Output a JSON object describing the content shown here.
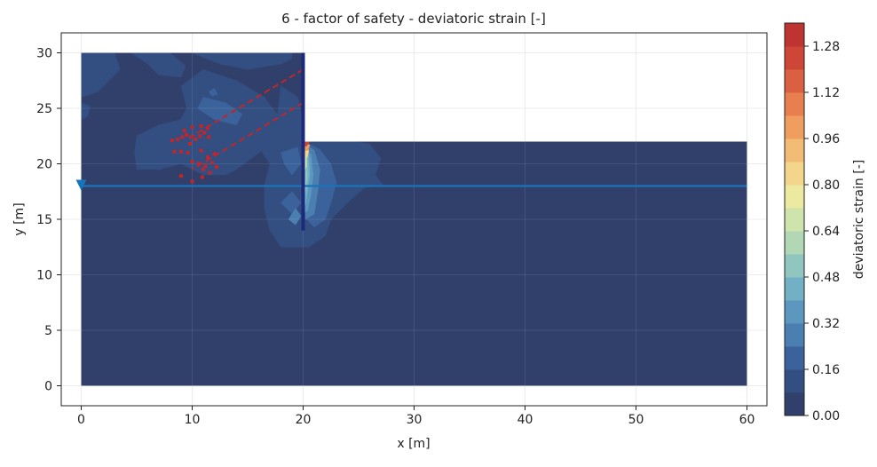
{
  "chart_data": {
    "type": "contour",
    "title": "6 - factor of safety - deviatoric strain [-]",
    "xlabel": "x [m]",
    "ylabel": "y [m]",
    "xlim": [
      -1.8,
      61.8
    ],
    "ylim": [
      -1.8,
      31.8
    ],
    "x_ticks": [
      0,
      10,
      20,
      30,
      40,
      50,
      60
    ],
    "y_ticks": [
      0,
      5,
      10,
      15,
      20,
      25,
      30
    ],
    "grid": true,
    "colorbar": {
      "label": "deviatoric strain [-]",
      "min": 0.0,
      "max": 1.36,
      "tick_labels": [
        "0.00",
        "0.16",
        "0.32",
        "0.48",
        "0.64",
        "0.80",
        "0.96",
        "1.12",
        "1.28"
      ],
      "levels": 17,
      "colors": [
        "#313f6b",
        "#334e81",
        "#3b629a",
        "#4c7fb1",
        "#5c97bf",
        "#72b0c6",
        "#91c6c0",
        "#b1d7b4",
        "#cfe3ad",
        "#ece9a0",
        "#f4d58c",
        "#f3bc76",
        "#ef9e5f",
        "#e87f4e",
        "#db6041",
        "#cd4638",
        "#bd3430"
      ]
    },
    "domain": {
      "outline": [
        [
          0,
          0
        ],
        [
          60,
          0
        ],
        [
          60,
          22
        ],
        [
          20,
          22
        ],
        [
          20,
          30
        ],
        [
          0,
          30
        ]
      ],
      "background_level": 0
    },
    "wall": {
      "x": 20,
      "y_top": 30,
      "y_bottom": 14,
      "color": "#1b2a7a"
    },
    "water_table": {
      "y": 18,
      "x_start": 0,
      "x_end": 60,
      "color": "#1874b8"
    },
    "anchors": [
      {
        "x1": 20,
        "y1": 28.5,
        "x2": 10,
        "y2": 22.5
      },
      {
        "x1": 20,
        "y1": 25.5,
        "x2": 10,
        "y2": 19.5
      }
    ],
    "gauss_points": [
      [
        8.2,
        22.1
      ],
      [
        8.7,
        22.2
      ],
      [
        9.1,
        22.4
      ],
      [
        9.5,
        22.6
      ],
      [
        9.9,
        22.4
      ],
      [
        10.3,
        22.2
      ],
      [
        10.7,
        22.5
      ],
      [
        11.1,
        22.8
      ],
      [
        11.5,
        22.4
      ],
      [
        9.3,
        23
      ],
      [
        10.0,
        23.3
      ],
      [
        10.8,
        23.4
      ],
      [
        11.4,
        23.2
      ],
      [
        8.4,
        21.1
      ],
      [
        9.0,
        21.1
      ],
      [
        9.6,
        21.0
      ],
      [
        10.8,
        21.2
      ],
      [
        11.4,
        20.6
      ],
      [
        10.0,
        20.2
      ],
      [
        10.6,
        20.0
      ],
      [
        11.2,
        19.8
      ],
      [
        11.8,
        20.1
      ],
      [
        12.2,
        19.7
      ],
      [
        11.0,
        19.5
      ],
      [
        9.0,
        18.9
      ],
      [
        10.0,
        18.4
      ],
      [
        10.9,
        18.8
      ],
      [
        11.6,
        19.2
      ],
      [
        12.0,
        20.9
      ],
      [
        9.8,
        21.8
      ]
    ],
    "contour_regions": [
      {
        "level": 1,
        "points": [
          [
            0,
            30
          ],
          [
            3,
            30
          ],
          [
            3.5,
            28.5
          ],
          [
            2.5,
            27.5
          ],
          [
            1.5,
            26.5
          ],
          [
            0,
            26
          ]
        ]
      },
      {
        "level": 1,
        "points": [
          [
            0,
            25.5
          ],
          [
            0.8,
            25.2
          ],
          [
            0.6,
            24.3
          ],
          [
            0,
            24
          ]
        ]
      },
      {
        "level": 1,
        "points": [
          [
            4.5,
            30
          ],
          [
            6,
            29
          ],
          [
            7,
            28
          ],
          [
            9,
            27.8
          ],
          [
            9.4,
            28.8
          ],
          [
            8,
            30
          ]
        ]
      },
      {
        "level": 1,
        "points": [
          [
            10,
            30
          ],
          [
            12.5,
            29
          ],
          [
            15,
            28.5
          ],
          [
            18,
            29
          ],
          [
            19,
            29.5
          ],
          [
            19,
            30
          ]
        ]
      },
      {
        "level": 1,
        "points": [
          [
            9,
            27
          ],
          [
            9.5,
            25
          ],
          [
            9,
            24
          ],
          [
            7,
            23.5
          ],
          [
            5,
            22.5
          ],
          [
            4.8,
            21
          ],
          [
            5,
            19.5
          ],
          [
            7,
            19.5
          ],
          [
            9,
            20
          ],
          [
            11,
            19
          ],
          [
            13,
            19
          ],
          [
            14,
            19.5
          ],
          [
            16,
            21
          ],
          [
            18,
            22.5
          ],
          [
            18,
            24
          ],
          [
            16.5,
            26
          ],
          [
            14,
            27.5
          ],
          [
            11,
            28.5
          ]
        ]
      },
      {
        "level": 1,
        "points": [
          [
            18,
            27
          ],
          [
            19.5,
            26
          ],
          [
            20,
            24
          ],
          [
            21,
            22.1
          ],
          [
            24,
            22.1
          ],
          [
            26,
            21.8
          ],
          [
            27,
            20.5
          ],
          [
            26.5,
            19
          ],
          [
            27.2,
            18.1
          ],
          [
            25.5,
            17.8
          ],
          [
            24,
            16.5
          ],
          [
            22.5,
            15
          ],
          [
            22,
            13.5
          ],
          [
            20.5,
            12.5
          ],
          [
            18,
            12.5
          ],
          [
            17,
            14
          ],
          [
            16.5,
            16
          ],
          [
            16.5,
            18
          ],
          [
            17,
            20
          ],
          [
            16,
            21.5
          ],
          [
            17.5,
            23
          ]
        ]
      },
      {
        "level": 1,
        "points": [
          [
            29,
            22.1
          ],
          [
            30,
            22.8
          ],
          [
            31.5,
            22.6
          ],
          [
            31.5,
            22.1
          ]
        ]
      },
      {
        "level": 2,
        "points": [
          [
            11,
            26
          ],
          [
            13,
            25.5
          ],
          [
            14.5,
            24.5
          ],
          [
            14,
            23.5
          ],
          [
            12,
            24
          ],
          [
            10.5,
            25
          ]
        ]
      },
      {
        "level": 2,
        "points": [
          [
            18,
            21
          ],
          [
            19.5,
            21.5
          ],
          [
            19.8,
            20
          ],
          [
            19,
            19
          ],
          [
            18.3,
            20
          ]
        ]
      },
      {
        "level": 2,
        "points": [
          [
            20.3,
            21.9
          ],
          [
            21.5,
            21.3
          ],
          [
            22.5,
            20
          ],
          [
            23,
            18.3
          ],
          [
            22.5,
            16.5
          ],
          [
            22,
            15
          ],
          [
            21,
            14.3
          ],
          [
            20.3,
            15
          ]
        ]
      },
      {
        "level": 2,
        "points": [
          [
            18,
            16.5
          ],
          [
            19,
            17.5
          ],
          [
            19.8,
            16.5
          ],
          [
            19,
            15.5
          ]
        ]
      },
      {
        "level": 2,
        "points": [
          [
            11.5,
            26.5
          ],
          [
            12,
            26.8
          ],
          [
            12.3,
            26.3
          ],
          [
            11.8,
            26.1
          ]
        ]
      },
      {
        "level": 3,
        "points": [
          [
            20.2,
            21.8
          ],
          [
            21,
            21.2
          ],
          [
            21.5,
            19.5
          ],
          [
            21.3,
            17.5
          ],
          [
            21,
            15.5
          ],
          [
            20.2,
            15
          ]
        ]
      },
      {
        "level": 3,
        "points": [
          [
            18.7,
            15
          ],
          [
            19.3,
            16
          ],
          [
            19.8,
            15.3
          ],
          [
            19.3,
            14.5
          ]
        ]
      },
      {
        "level": 4,
        "points": [
          [
            20.1,
            21.6
          ],
          [
            20.7,
            20.8
          ],
          [
            20.9,
            19
          ],
          [
            20.7,
            17.3
          ],
          [
            20.4,
            15.8
          ],
          [
            20.1,
            15.6
          ]
        ]
      },
      {
        "level": 5,
        "points": [
          [
            20.1,
            21.5
          ],
          [
            20.5,
            20.6
          ],
          [
            20.6,
            19.2
          ],
          [
            20.4,
            17.6
          ],
          [
            20.2,
            16.3
          ],
          [
            20.05,
            16.3
          ]
        ]
      },
      {
        "level": 6,
        "points": [
          [
            20.05,
            21.5
          ],
          [
            20.35,
            20.5
          ],
          [
            20.4,
            18.8
          ],
          [
            20.2,
            17.6
          ],
          [
            20.05,
            17
          ]
        ]
      },
      {
        "level": 8,
        "points": [
          [
            20.05,
            21.6
          ],
          [
            20.3,
            20.8
          ],
          [
            20.3,
            19.8
          ],
          [
            20.1,
            19.4
          ]
        ]
      },
      {
        "level": 10,
        "points": [
          [
            20.05,
            21.8
          ],
          [
            20.5,
            21.2
          ],
          [
            20.4,
            20.6
          ],
          [
            20.1,
            20.6
          ]
        ]
      },
      {
        "level": 12,
        "points": [
          [
            20.05,
            21.9
          ],
          [
            20.6,
            21.7
          ],
          [
            20.4,
            21.2
          ],
          [
            20.1,
            21.2
          ]
        ]
      },
      {
        "level": 15,
        "points": [
          [
            20.05,
            22
          ],
          [
            20.6,
            22
          ],
          [
            20.3,
            21.6
          ],
          [
            20.05,
            21.6
          ]
        ]
      }
    ]
  }
}
